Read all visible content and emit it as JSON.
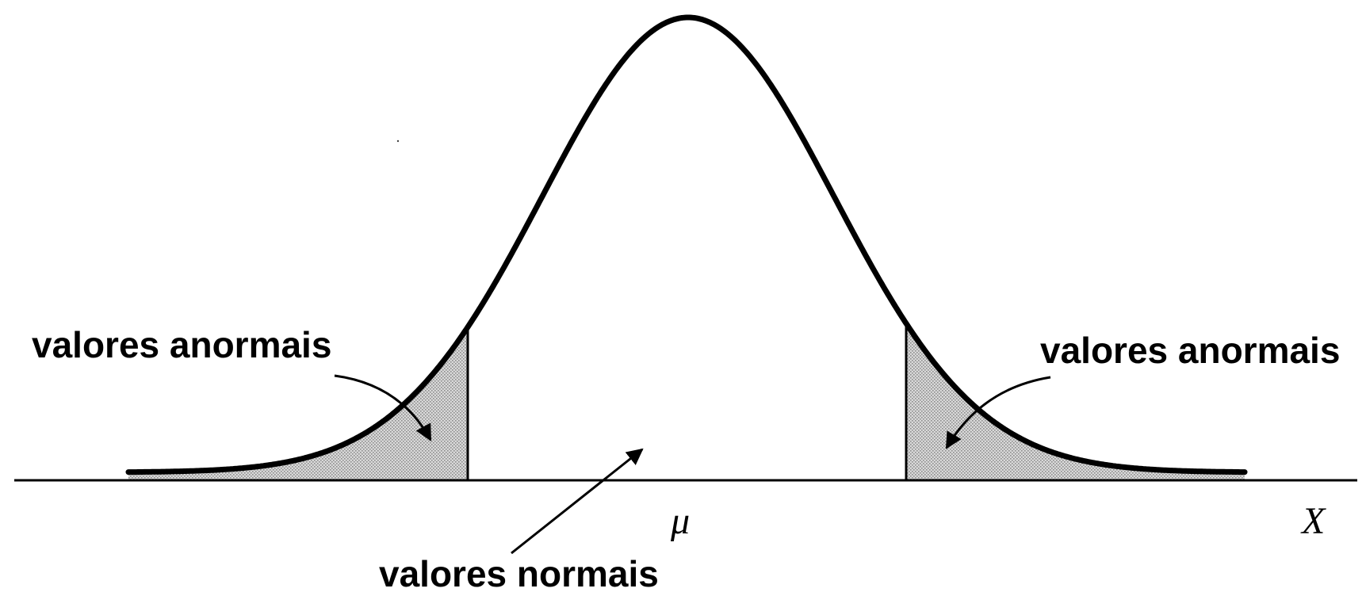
{
  "labels": {
    "left_tail": "valores anormais",
    "right_tail": "valores anormais",
    "center": "valores normais",
    "mean_symbol": "μ",
    "axis_variable": "X"
  },
  "colors": {
    "curve": "#000000",
    "tail_fill": "#c8c8c8",
    "background": "#ffffff"
  },
  "distribution": {
    "type": "normal",
    "shaded_regions": [
      "left-tail",
      "right-tail"
    ]
  }
}
